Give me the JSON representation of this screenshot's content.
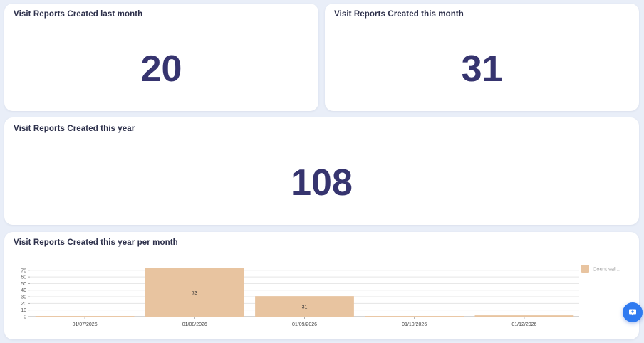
{
  "kpis": {
    "last_month": {
      "title": "Visit Reports Created last month",
      "value": "20"
    },
    "this_month": {
      "title": "Visit Reports Created this month",
      "value": "31"
    },
    "this_year": {
      "title": "Visit Reports Created this year",
      "value": "108"
    }
  },
  "chart_card": {
    "title": "Visit Reports Created this year per month"
  },
  "colors": {
    "bar": "#e8c4a0",
    "kpi_text": "#36346f",
    "title_text": "#2c2f4a",
    "grid": "#e5e5e5",
    "fab": "#2f7af0"
  },
  "icons": {
    "fab": "chat-bubble-icon"
  },
  "chart_data": {
    "type": "bar",
    "categories": [
      "01/07/2026",
      "01/08/2026",
      "01/09/2026",
      "01/10/2026",
      "01/12/2026"
    ],
    "series": [
      {
        "name": "Count val...",
        "values": [
          1,
          73,
          31,
          1,
          2
        ]
      }
    ],
    "data_labels": [
      "",
      "73",
      "31",
      "",
      ""
    ],
    "title": "Visit Reports Created this year per month",
    "xlabel": "",
    "ylabel": "",
    "yticks": [
      0,
      10,
      20,
      30,
      40,
      50,
      60,
      70
    ],
    "ylim": [
      0,
      73
    ],
    "grid": true,
    "legend": "right"
  }
}
